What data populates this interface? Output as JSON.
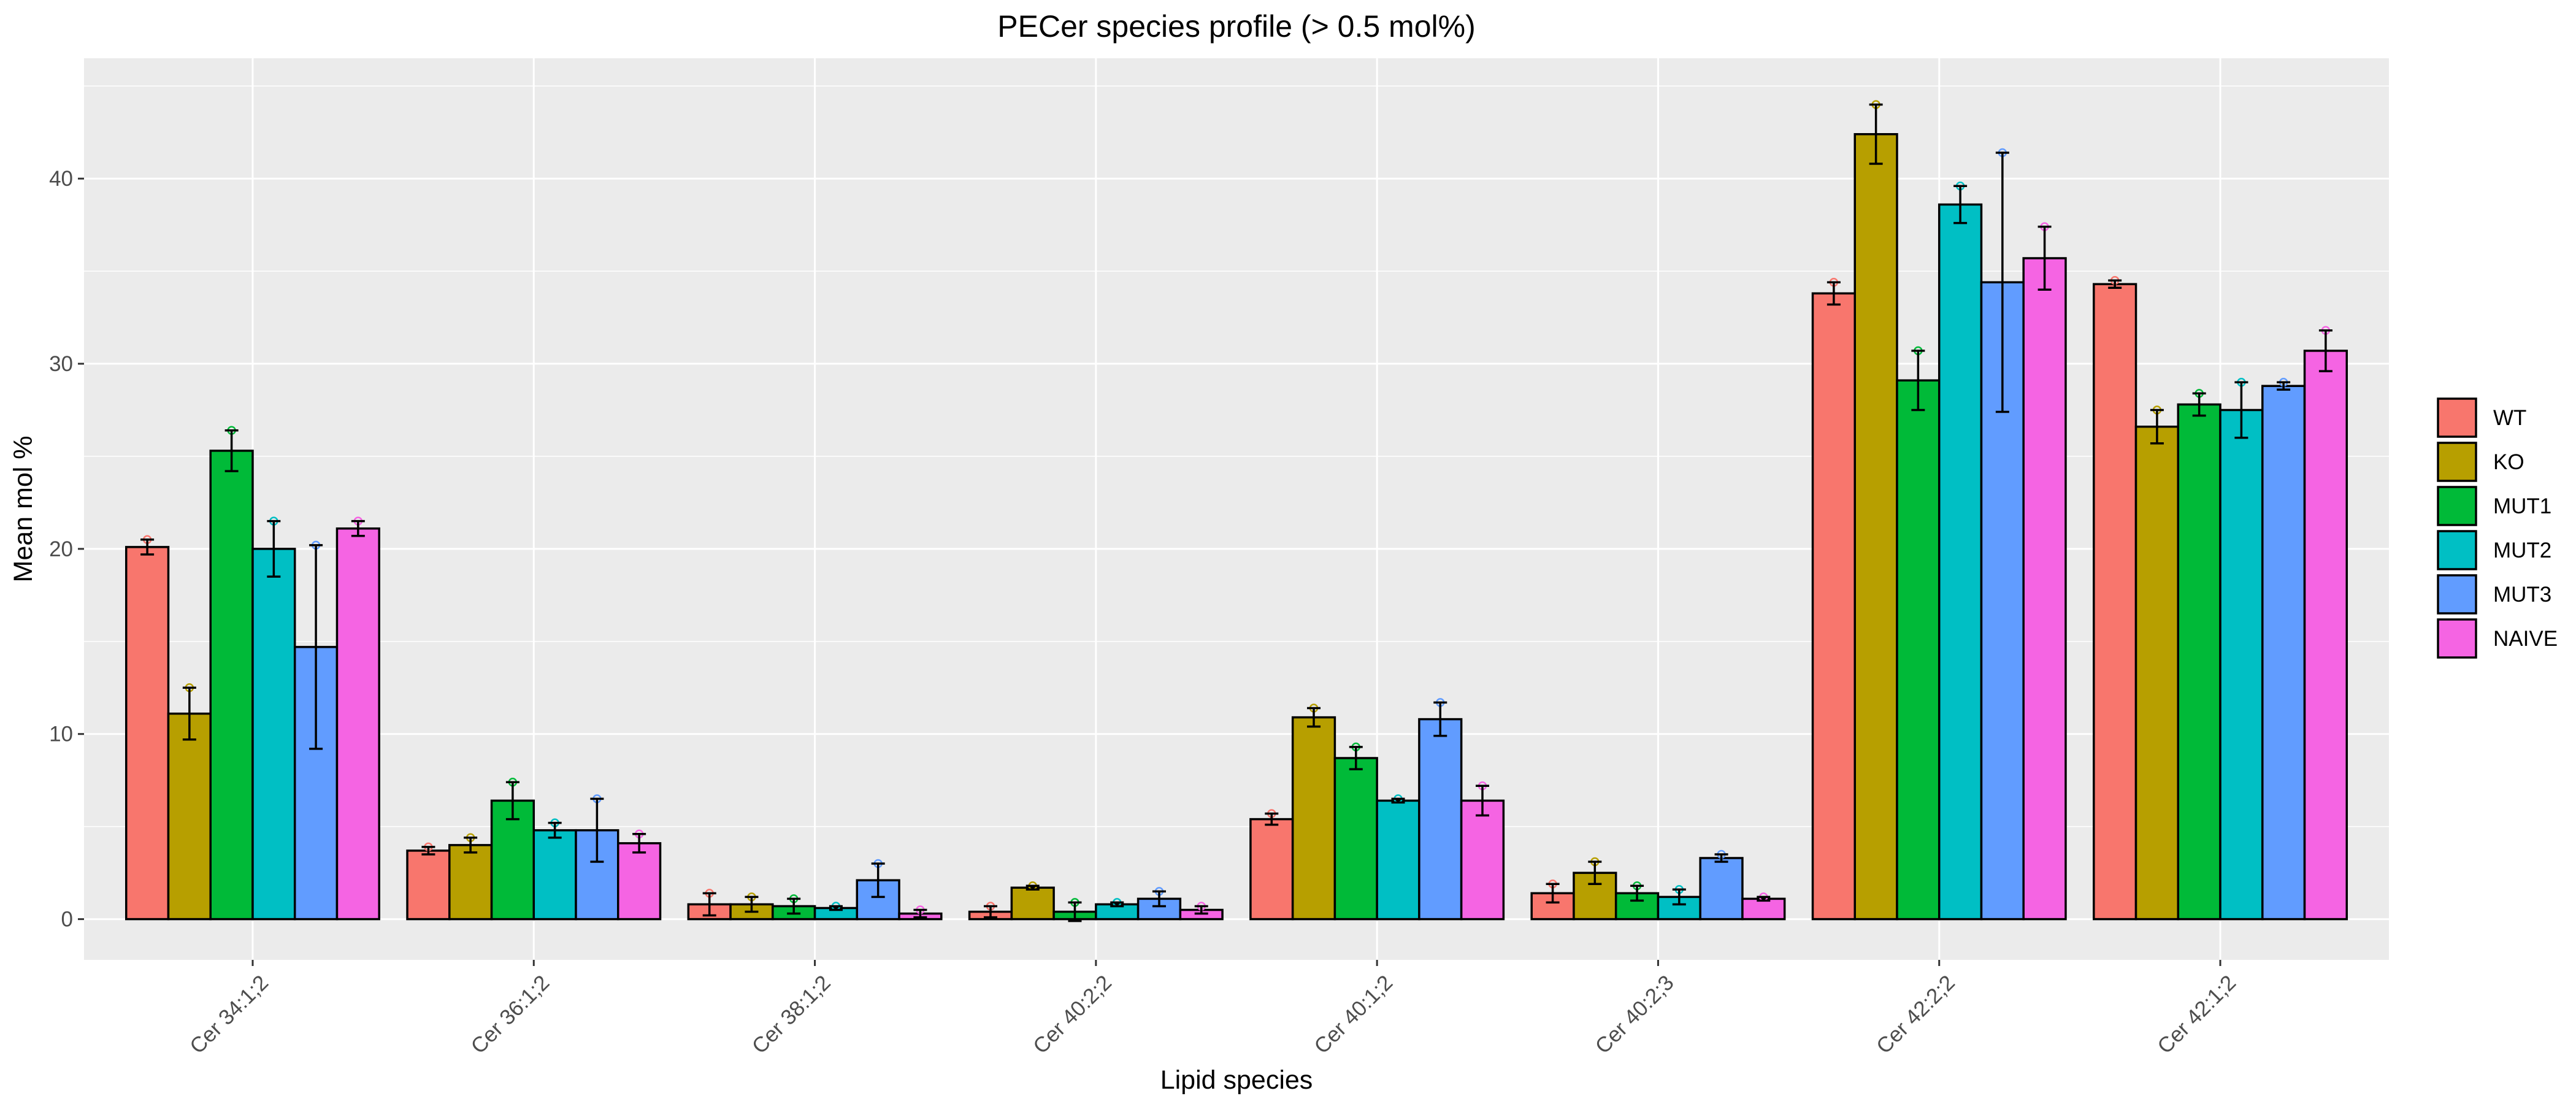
{
  "chart_data": {
    "type": "bar",
    "title": "PECer species profile (> 0.5 mol%)",
    "xlabel": "Lipid species",
    "ylabel": "Mean mol %",
    "ylim": [
      -2.2,
      46.5
    ],
    "yticks": [
      0,
      10,
      20,
      30,
      40
    ],
    "grid": true,
    "legend_position": "right",
    "categories": [
      "Cer 34:1;2",
      "Cer 36:1;2",
      "Cer 38:1;2",
      "Cer 40:2;2",
      "Cer 40:1;2",
      "Cer 40:2;3",
      "Cer 42:2;2",
      "Cer 42:1;2"
    ],
    "series": [
      {
        "name": "WT",
        "color": "#F8766D",
        "values": [
          20.1,
          3.7,
          0.8,
          0.4,
          5.4,
          1.4,
          33.8,
          34.3
        ],
        "errors": [
          0.4,
          0.2,
          0.6,
          0.3,
          0.3,
          0.5,
          0.6,
          0.2
        ]
      },
      {
        "name": "KO",
        "color": "#B79F00",
        "values": [
          11.1,
          4.0,
          0.8,
          1.7,
          10.9,
          2.5,
          42.4,
          26.6
        ],
        "errors": [
          1.4,
          0.4,
          0.4,
          0.1,
          0.5,
          0.6,
          1.6,
          0.9
        ]
      },
      {
        "name": "MUT1",
        "color": "#00BA38",
        "values": [
          25.3,
          6.4,
          0.7,
          0.4,
          8.7,
          1.4,
          29.1,
          27.8
        ],
        "errors": [
          1.1,
          1.0,
          0.4,
          0.5,
          0.6,
          0.4,
          1.6,
          0.6
        ]
      },
      {
        "name": "MUT2",
        "color": "#00BFC4",
        "values": [
          20.0,
          4.8,
          0.6,
          0.8,
          6.4,
          1.2,
          38.6,
          27.5
        ],
        "errors": [
          1.5,
          0.4,
          0.1,
          0.1,
          0.1,
          0.4,
          1.0,
          1.5
        ]
      },
      {
        "name": "MUT3",
        "color": "#619CFF",
        "values": [
          14.7,
          4.8,
          2.1,
          1.1,
          10.8,
          3.3,
          34.4,
          28.8
        ],
        "errors": [
          5.5,
          1.7,
          0.9,
          0.4,
          0.9,
          0.2,
          7.0,
          0.2
        ]
      },
      {
        "name": "NAIVE",
        "color": "#F564E3",
        "values": [
          21.1,
          4.1,
          0.3,
          0.5,
          6.4,
          1.1,
          35.7,
          30.7
        ],
        "errors": [
          0.4,
          0.5,
          0.2,
          0.2,
          0.8,
          0.1,
          1.7,
          1.1
        ]
      }
    ]
  }
}
